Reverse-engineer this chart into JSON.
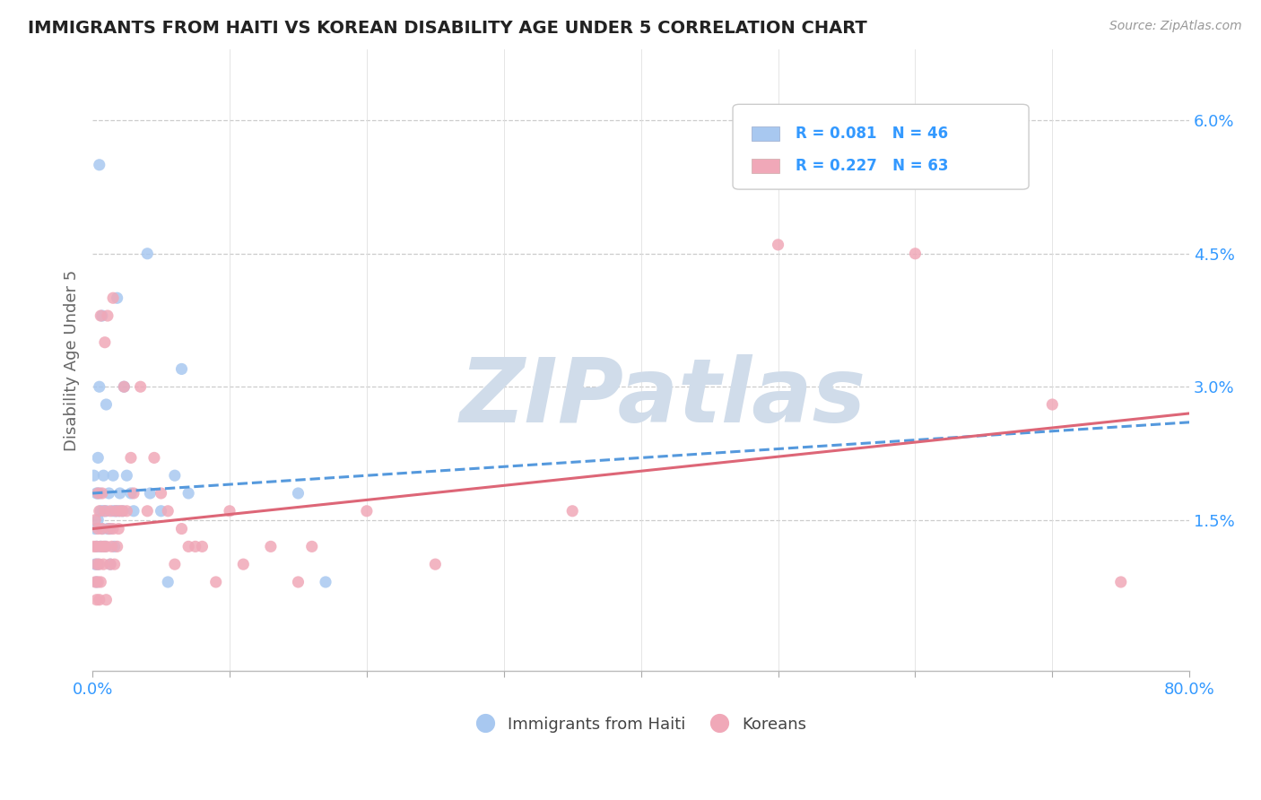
{
  "title": "IMMIGRANTS FROM HAITI VS KOREAN DISABILITY AGE UNDER 5 CORRELATION CHART",
  "source": "Source: ZipAtlas.com",
  "ylabel": "Disability Age Under 5",
  "xlim": [
    0.0,
    0.8
  ],
  "ylim": [
    -0.002,
    0.068
  ],
  "yticks": [
    0.015,
    0.03,
    0.045,
    0.06
  ],
  "ytick_labels": [
    "1.5%",
    "3.0%",
    "4.5%",
    "6.0%"
  ],
  "xticks": [
    0.0,
    0.1,
    0.2,
    0.3,
    0.4,
    0.5,
    0.6,
    0.7,
    0.8
  ],
  "xtick_labels": [
    "0.0%",
    "",
    "",
    "",
    "",
    "",
    "",
    "",
    "80.0%"
  ],
  "haiti_color": "#a8c8f0",
  "korean_color": "#f0a8b8",
  "haiti_line_color": "#5599dd",
  "korean_line_color": "#dd6677",
  "haiti_R": 0.081,
  "haiti_N": 46,
  "korean_R": 0.227,
  "korean_N": 63,
  "legend_color": "#3399ff",
  "background_color": "#ffffff",
  "grid_color": "#cccccc",
  "tick_color": "#3399ff",
  "haiti_scatter": [
    [
      0.001,
      0.02
    ],
    [
      0.002,
      0.014
    ],
    [
      0.002,
      0.01
    ],
    [
      0.003,
      0.018
    ],
    [
      0.003,
      0.012
    ],
    [
      0.003,
      0.008
    ],
    [
      0.004,
      0.022
    ],
    [
      0.004,
      0.015
    ],
    [
      0.004,
      0.01
    ],
    [
      0.005,
      0.03
    ],
    [
      0.005,
      0.018
    ],
    [
      0.005,
      0.055
    ],
    [
      0.006,
      0.016
    ],
    [
      0.006,
      0.012
    ],
    [
      0.007,
      0.038
    ],
    [
      0.007,
      0.014
    ],
    [
      0.008,
      0.02
    ],
    [
      0.008,
      0.016
    ],
    [
      0.009,
      0.012
    ],
    [
      0.01,
      0.028
    ],
    [
      0.01,
      0.016
    ],
    [
      0.011,
      0.014
    ],
    [
      0.012,
      0.018
    ],
    [
      0.013,
      0.014
    ],
    [
      0.013,
      0.01
    ],
    [
      0.015,
      0.016
    ],
    [
      0.015,
      0.02
    ],
    [
      0.016,
      0.012
    ],
    [
      0.017,
      0.016
    ],
    [
      0.018,
      0.04
    ],
    [
      0.019,
      0.016
    ],
    [
      0.02,
      0.018
    ],
    [
      0.022,
      0.016
    ],
    [
      0.023,
      0.03
    ],
    [
      0.025,
      0.02
    ],
    [
      0.028,
      0.018
    ],
    [
      0.03,
      0.016
    ],
    [
      0.04,
      0.045
    ],
    [
      0.042,
      0.018
    ],
    [
      0.05,
      0.016
    ],
    [
      0.055,
      0.008
    ],
    [
      0.06,
      0.02
    ],
    [
      0.065,
      0.032
    ],
    [
      0.07,
      0.018
    ],
    [
      0.15,
      0.018
    ],
    [
      0.17,
      0.008
    ]
  ],
  "korean_scatter": [
    [
      0.001,
      0.012
    ],
    [
      0.002,
      0.008
    ],
    [
      0.002,
      0.015
    ],
    [
      0.003,
      0.01
    ],
    [
      0.003,
      0.006
    ],
    [
      0.003,
      0.012
    ],
    [
      0.004,
      0.014
    ],
    [
      0.004,
      0.008
    ],
    [
      0.004,
      0.018
    ],
    [
      0.005,
      0.01
    ],
    [
      0.005,
      0.016
    ],
    [
      0.005,
      0.006
    ],
    [
      0.006,
      0.038
    ],
    [
      0.006,
      0.012
    ],
    [
      0.006,
      0.008
    ],
    [
      0.007,
      0.014
    ],
    [
      0.007,
      0.018
    ],
    [
      0.008,
      0.01
    ],
    [
      0.008,
      0.012
    ],
    [
      0.009,
      0.035
    ],
    [
      0.009,
      0.016
    ],
    [
      0.01,
      0.012
    ],
    [
      0.01,
      0.006
    ],
    [
      0.011,
      0.038
    ],
    [
      0.012,
      0.014
    ],
    [
      0.013,
      0.01
    ],
    [
      0.013,
      0.016
    ],
    [
      0.014,
      0.012
    ],
    [
      0.015,
      0.04
    ],
    [
      0.015,
      0.014
    ],
    [
      0.016,
      0.01
    ],
    [
      0.017,
      0.016
    ],
    [
      0.018,
      0.012
    ],
    [
      0.019,
      0.014
    ],
    [
      0.02,
      0.016
    ],
    [
      0.022,
      0.016
    ],
    [
      0.023,
      0.03
    ],
    [
      0.025,
      0.016
    ],
    [
      0.028,
      0.022
    ],
    [
      0.03,
      0.018
    ],
    [
      0.035,
      0.03
    ],
    [
      0.04,
      0.016
    ],
    [
      0.045,
      0.022
    ],
    [
      0.05,
      0.018
    ],
    [
      0.055,
      0.016
    ],
    [
      0.06,
      0.01
    ],
    [
      0.065,
      0.014
    ],
    [
      0.07,
      0.012
    ],
    [
      0.075,
      0.012
    ],
    [
      0.08,
      0.012
    ],
    [
      0.09,
      0.008
    ],
    [
      0.1,
      0.016
    ],
    [
      0.11,
      0.01
    ],
    [
      0.13,
      0.012
    ],
    [
      0.15,
      0.008
    ],
    [
      0.16,
      0.012
    ],
    [
      0.2,
      0.016
    ],
    [
      0.25,
      0.01
    ],
    [
      0.35,
      0.016
    ],
    [
      0.5,
      0.046
    ],
    [
      0.6,
      0.045
    ],
    [
      0.7,
      0.028
    ],
    [
      0.75,
      0.008
    ]
  ],
  "watermark_text": "ZIPatlas",
  "watermark_color": "#d0dcea",
  "watermark_fontsize": 72,
  "haiti_trend": [
    0.0,
    0.8,
    0.018,
    0.026
  ],
  "korean_trend": [
    0.0,
    0.8,
    0.014,
    0.027
  ]
}
